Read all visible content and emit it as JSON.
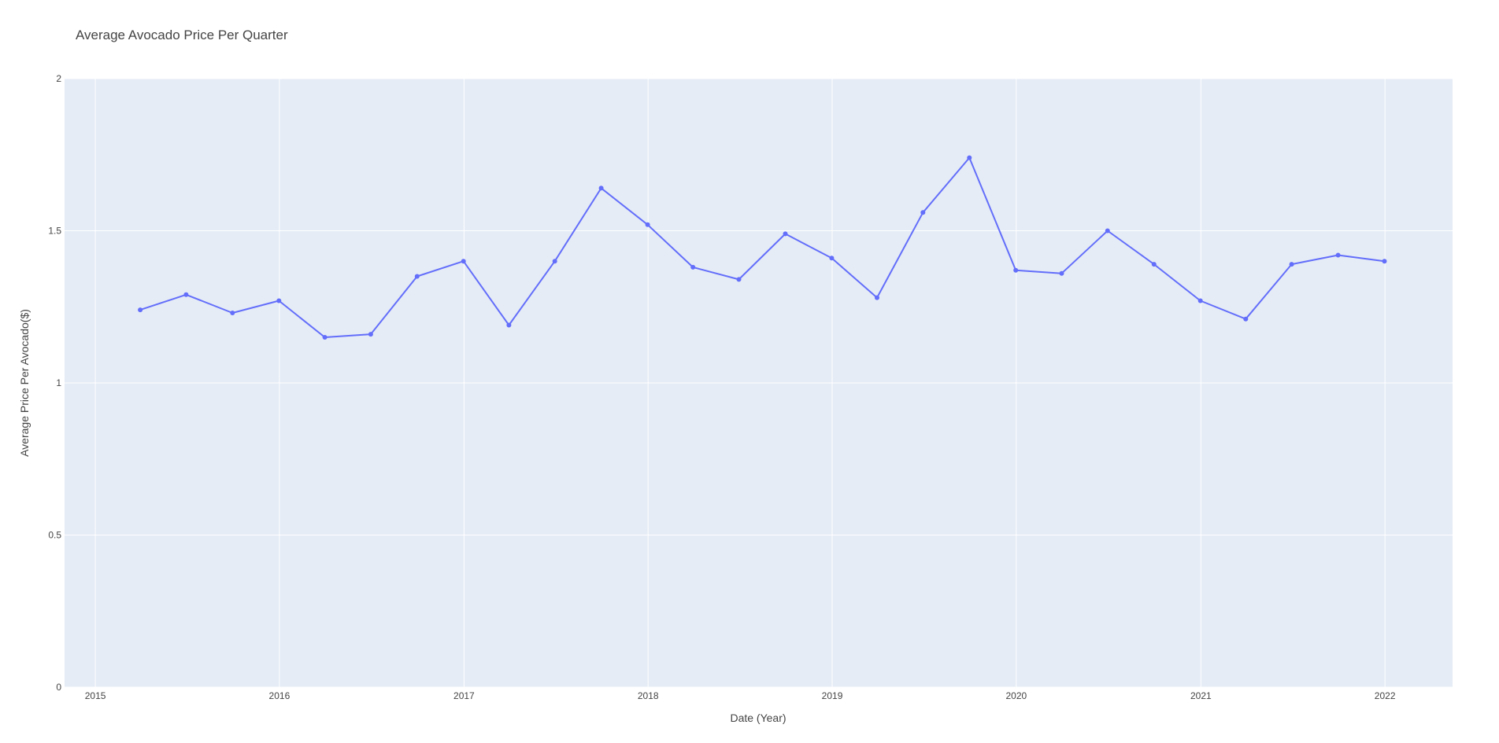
{
  "chart_data": {
    "type": "line",
    "title": "Average Avocado Price Per Quarter",
    "xlabel": "Date (Year)",
    "ylabel": "Average Price Per Avocado($)",
    "x_ticks": [
      "2015",
      "2016",
      "2017",
      "2018",
      "2019",
      "2020",
      "2021",
      "2022"
    ],
    "y_ticks": [
      "0",
      "0.5",
      "1",
      "1.5",
      "2"
    ],
    "xlim": [
      "2014-11-01",
      "2022-05-15"
    ],
    "ylim": [
      0,
      2
    ],
    "grid": true,
    "colors": {
      "line": "#636efa",
      "plot_bg": "#e5ecf6",
      "grid": "#ffffff"
    },
    "series": [
      {
        "x": [
          "2015-03-31",
          "2015-06-30",
          "2015-09-30",
          "2015-12-31",
          "2016-03-31",
          "2016-06-30",
          "2016-09-30",
          "2016-12-31",
          "2017-03-31",
          "2017-06-30",
          "2017-09-30",
          "2017-12-31",
          "2018-03-31",
          "2018-06-30",
          "2018-09-30",
          "2018-12-31",
          "2019-03-31",
          "2019-06-30",
          "2019-09-30",
          "2019-12-31",
          "2020-03-31",
          "2020-06-30",
          "2020-09-30",
          "2020-12-31",
          "2021-03-31",
          "2021-06-30",
          "2021-09-30",
          "2021-12-31"
        ],
        "values": [
          1.24,
          1.29,
          1.23,
          1.27,
          1.15,
          1.16,
          1.35,
          1.4,
          1.19,
          1.4,
          1.64,
          1.52,
          1.38,
          1.34,
          1.49,
          1.41,
          1.28,
          1.56,
          1.74,
          1.37,
          1.36,
          1.5,
          1.39,
          1.27,
          1.21,
          1.39,
          1.42,
          1.4
        ]
      }
    ]
  }
}
